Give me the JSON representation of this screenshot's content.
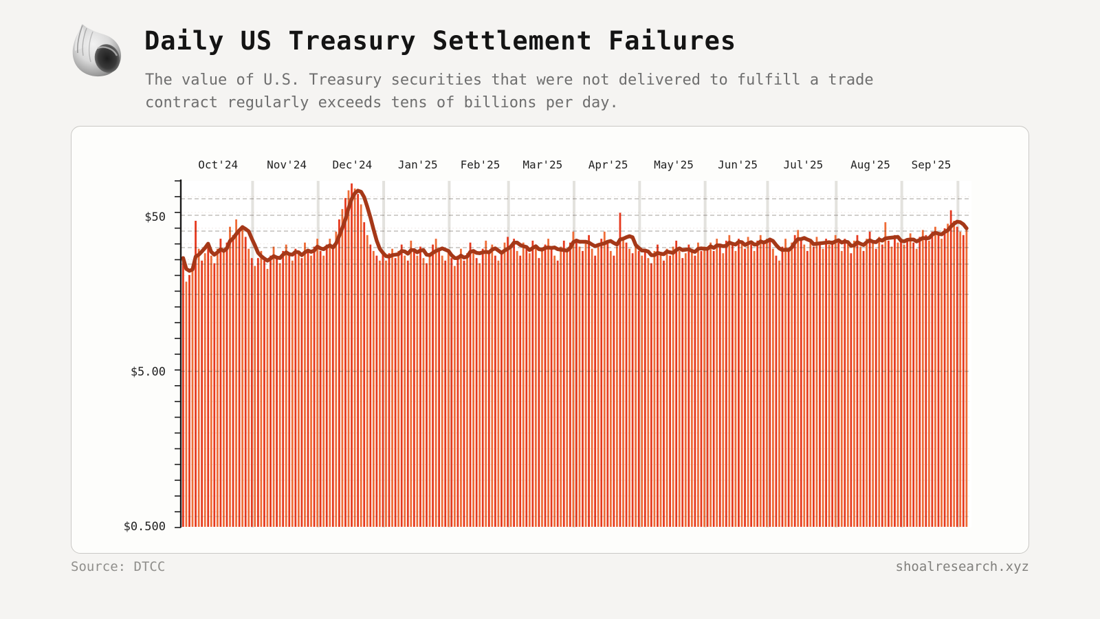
{
  "header": {
    "title": "Daily US Treasury Settlement Failures",
    "subtitle_line1": "The value of U.S. Treasury securities that were not delivered to fulfill a trade",
    "subtitle_line2": "contract regularly exceeds tens of billions per day.",
    "logo": "shell-logo"
  },
  "footer": {
    "source": "Source: DTCC",
    "site": "shoalresearch.xyz"
  },
  "colors": {
    "page_bg": "#f5f4f2",
    "card_bg": "#fdfdfb",
    "card_border": "#c9c8c5",
    "bar_red": "#e63a1f",
    "bar_orange": "#ef6c36",
    "line": "#a53818",
    "month_gridline": "#e3e2de",
    "dashed_grid": "rgba(70,60,52,0.33)",
    "axis": "#1a1a1a",
    "label_text": "#1f1f1f",
    "subtitle_text": "#6e6e6e",
    "footer_text": "#8f8e8b"
  },
  "chart_data": {
    "type": "bar",
    "title": "Daily US Treasury Settlement Failures",
    "unit": "USD billions per day",
    "y_scale": "log",
    "ylim": [
      0.5,
      85
    ],
    "y_tick_labels": [
      "$50",
      "$5.00",
      "$0.500"
    ],
    "y_tick_values": [
      50,
      5,
      0.5
    ],
    "grid": "dashed horizontal, light vertical month separators",
    "legend_position": "none",
    "line_overlay": "5-day moving average of daily values",
    "ma_window": 5,
    "x_month_labels": [
      "Oct'24",
      "Nov'24",
      "Dec'24",
      "Jan'25",
      "Feb'25",
      "Mar'25",
      "Apr'25",
      "May'25",
      "Jun'25",
      "Jul'25",
      "Aug'25",
      "Sep'25"
    ],
    "month_start_indices": [
      0,
      23,
      44,
      65,
      86,
      105,
      126,
      147,
      168,
      188,
      210,
      231
    ],
    "extra_boundary_index": 249,
    "values": [
      27,
      19,
      21,
      24,
      47,
      31,
      26,
      29,
      34,
      28,
      25,
      31,
      36,
      30,
      34,
      43,
      38,
      48,
      41,
      44,
      37,
      31,
      27,
      24,
      27,
      30,
      26,
      23,
      28,
      32,
      27,
      25,
      30,
      33,
      28,
      26,
      31,
      29,
      27,
      34,
      30,
      28,
      32,
      36,
      30,
      28,
      33,
      36,
      31,
      40,
      48,
      56,
      66,
      74,
      82,
      76,
      70,
      60,
      46,
      38,
      33,
      30,
      28,
      26,
      29,
      26,
      29,
      31,
      27,
      30,
      33,
      28,
      26,
      35,
      30,
      28,
      32,
      27,
      25,
      29,
      33,
      36,
      30,
      28,
      26,
      30,
      27,
      24,
      28,
      31,
      26,
      29,
      34,
      30,
      27,
      25,
      31,
      35,
      29,
      33,
      28,
      26,
      30,
      34,
      37,
      33,
      36,
      30,
      28,
      34,
      31,
      29,
      35,
      32,
      27,
      30,
      33,
      36,
      31,
      28,
      26,
      32,
      35,
      30,
      34,
      40,
      36,
      32,
      30,
      34,
      38,
      31,
      28,
      33,
      36,
      40,
      35,
      30,
      28,
      32,
      53,
      37,
      34,
      31,
      29,
      33,
      30,
      28,
      31,
      27,
      25,
      30,
      33,
      29,
      26,
      31,
      28,
      32,
      35,
      30,
      27,
      29,
      33,
      31,
      28,
      34,
      30,
      32,
      31,
      34,
      30,
      36,
      32,
      29,
      35,
      38,
      33,
      30,
      36,
      34,
      31,
      37,
      33,
      30,
      35,
      38,
      34,
      36,
      35,
      31,
      28,
      26,
      32,
      36,
      30,
      34,
      38,
      41,
      36,
      33,
      30,
      35,
      32,
      37,
      34,
      31,
      36,
      33,
      35,
      38,
      34,
      30,
      36,
      33,
      29,
      35,
      38,
      32,
      30,
      36,
      40,
      34,
      31,
      37,
      33,
      46,
      35,
      32,
      38,
      34,
      36,
      33,
      36,
      39,
      34,
      31,
      37,
      41,
      38,
      35,
      40,
      43,
      38,
      36,
      42,
      45,
      55,
      47,
      43,
      40,
      38,
      42
    ]
  }
}
